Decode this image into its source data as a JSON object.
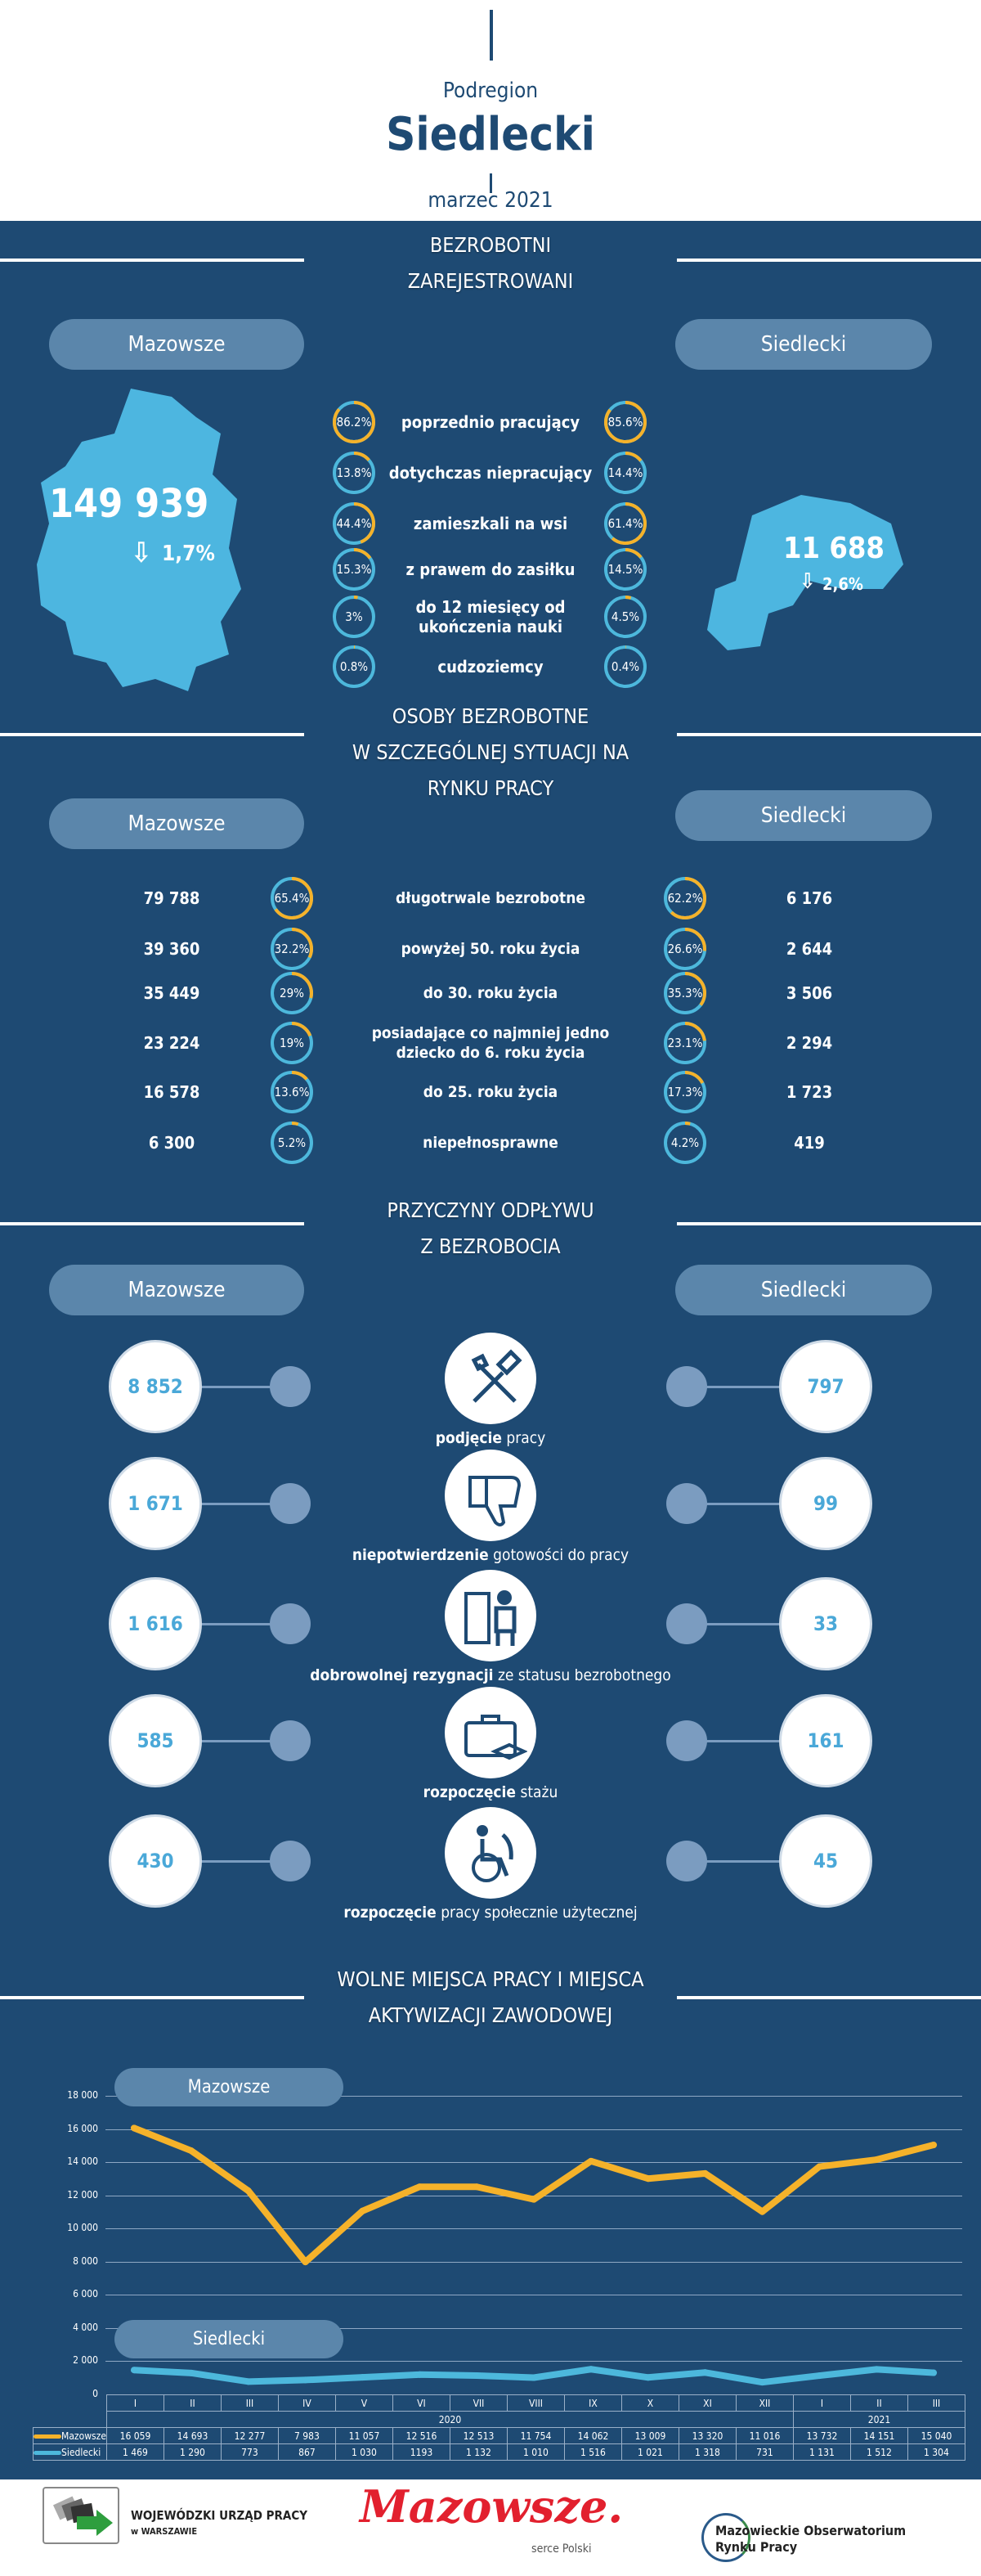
{
  "header": {
    "subtitle": "Podregion",
    "title": "Siedlecki",
    "date": "marzec 2021"
  },
  "colors": {
    "background": "#1e4a73",
    "pill": "#5b86ab",
    "accent_orange": "#f5b22a",
    "accent_blue": "#4db8dc",
    "map": "#4db6e0"
  },
  "section1": {
    "title_line1": "BEZROBOTNI",
    "title_line2": "ZAREJESTROWANI",
    "left_pill": "Mazowsze",
    "right_pill": "Siedlecki",
    "left_total": "149 939",
    "left_change": "1,7%",
    "left_change_icon": "arrow-down-icon",
    "right_total": "11 688",
    "right_change": "2,6%",
    "right_change_icon": "arrow-down-icon",
    "rows": [
      {
        "label": "poprzednio pracujący",
        "left": "86.2%",
        "right": "85.6%"
      },
      {
        "label": "dotychczas niepracujący",
        "left": "13.8%",
        "right": "14.4%"
      },
      {
        "label": "zamieszkali na wsi",
        "left": "44.4%",
        "right": "61.4%"
      },
      {
        "label": "z prawem do zasiłku",
        "left": "15.3%",
        "right": "14.5%"
      },
      {
        "label": "do 12 miesięcy od ukończenia nauki",
        "left": "3%",
        "right": "4.5%"
      },
      {
        "label": "cudzoziemcy",
        "left": "0.8%",
        "right": "0.4%"
      }
    ]
  },
  "section2": {
    "title_line1": "OSOBY BEZROBOTNE",
    "title_line2": "W SZCZEGÓLNEJ SYTUACJI NA",
    "title_line3": "RYNKU PRACY",
    "left_pill": "Mazowsze",
    "right_pill": "Siedlecki",
    "rows": [
      {
        "label": "długotrwale bezrobotne",
        "left_num": "79 788",
        "left_pct": "65.4%",
        "right_pct": "62.2%",
        "right_num": "6 176"
      },
      {
        "label": "powyżej 50. roku życia",
        "left_num": "39 360",
        "left_pct": "32.2%",
        "right_pct": "26.6%",
        "right_num": "2 644"
      },
      {
        "label": "do 30. roku życia",
        "left_num": "35 449",
        "left_pct": "29%",
        "right_pct": "35.3%",
        "right_num": "3 506"
      },
      {
        "label": "posiadające co najmniej jedno dziecko do 6. roku życia",
        "left_num": "23 224",
        "left_pct": "19%",
        "right_pct": "23.1%",
        "right_num": "2 294"
      },
      {
        "label": "do 25. roku życia",
        "left_num": "16 578",
        "left_pct": "13.6%",
        "right_pct": "17.3%",
        "right_num": "1 723"
      },
      {
        "label": "niepełnosprawne",
        "left_num": "6 300",
        "left_pct": "5.2%",
        "right_pct": "4.2%",
        "right_num": "419"
      }
    ]
  },
  "section3": {
    "title_line1": "PRZYCZYNY ODPŁYWU",
    "title_line2": "Z BEZROBOCIA",
    "left_pill": "Mazowsze",
    "right_pill": "Siedlecki",
    "rows": [
      {
        "bold": "podjęcie",
        "rest": " pracy",
        "left": "8 852",
        "right": "797",
        "icon": "tools-icon"
      },
      {
        "bold": "niepotwierdzenie",
        "rest": " gotowości do pracy",
        "left": "1 671",
        "right": "99",
        "icon": "thumbs-down-icon"
      },
      {
        "bold": "dobrowolnej rezygnacji",
        "rest": " ze statusu bezrobotnego",
        "left": "1 616",
        "right": "33",
        "icon": "person-leaving-door-icon"
      },
      {
        "bold": "rozpoczęcie",
        "rest": " stażu",
        "left": "585",
        "right": "161",
        "icon": "briefcase-graduation-icon"
      },
      {
        "bold": "rozpoczęcie",
        "rest": " pracy społecznie użytecznej",
        "left": "430",
        "right": "45",
        "icon": "wheelchair-icon"
      }
    ]
  },
  "section4": {
    "title_line1": "WOLNE MIEJSCA PRACY I MIEJSCA",
    "title_line2": "AKTYWIZACJI ZAWODOWEJ",
    "pill_top": "Mazowsze",
    "pill_bottom": "Siedlecki"
  },
  "chart_data": {
    "type": "line",
    "categories": [
      "I",
      "II",
      "III",
      "IV",
      "V",
      "VI",
      "VII",
      "VIII",
      "IX",
      "X",
      "XI",
      "XII",
      "I",
      "II",
      "III"
    ],
    "years": [
      {
        "label": "2020",
        "span": 12
      },
      {
        "label": "2021",
        "span": 3
      }
    ],
    "ylim": [
      0,
      18000
    ],
    "yticks": [
      "0",
      "2 000",
      "4 000",
      "6 000",
      "8 000",
      "10 000",
      "12 000",
      "14 000",
      "16 000",
      "18 000"
    ],
    "grid": true,
    "series": [
      {
        "name": "Mazowsze",
        "color": "#f5b22a",
        "values": [
          16059,
          14693,
          12277,
          7983,
          11057,
          12516,
          12513,
          11754,
          14062,
          13009,
          13320,
          11016,
          13732,
          14151,
          15040
        ],
        "labels": [
          "16 059",
          "14 693",
          "12 277",
          "7 983",
          "11 057",
          "12 516",
          "12 513",
          "11 754",
          "14 062",
          "13 009",
          "13 320",
          "11 016",
          "13 732",
          "14 151",
          "15 040"
        ]
      },
      {
        "name": "Siedlecki",
        "color": "#4db8dc",
        "values": [
          1469,
          1290,
          773,
          867,
          1030,
          1193,
          1132,
          1010,
          1516,
          1021,
          1318,
          731,
          1131,
          1512,
          1304
        ],
        "labels": [
          "1 469",
          "1 290",
          "773",
          "867",
          "1 030",
          "1193",
          "1 132",
          "1 010",
          "1 516",
          "1 021",
          "1 318",
          "731",
          "1 131",
          "1 512",
          "1 304"
        ]
      }
    ]
  },
  "footer": {
    "wup_line1": "WOJEWÓDZKI URZĄD PRACY",
    "wup_line2": "w WARSZAWIE",
    "mazowsze_logo": "Mazowsze.",
    "mazowsze_tagline": "serce Polski",
    "obs_line1": "Mazowieckie Obserwatorium",
    "obs_line2": "Rynku Pracy"
  }
}
